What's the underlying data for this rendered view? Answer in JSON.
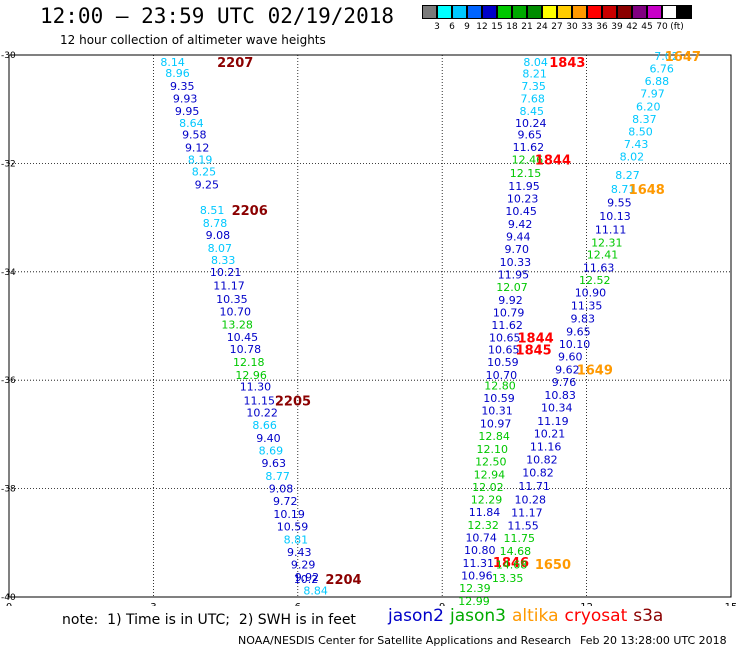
{
  "header": {
    "title": "12:00 – 23:59 UTC 02/19/2018",
    "subtitle": "12 hour collection of altimeter wave heights"
  },
  "colorbar": {
    "colors": [
      "#7a7a7a",
      "#00ffff",
      "#00c8ff",
      "#0064ff",
      "#0000c8",
      "#00c800",
      "#00aa00",
      "#008c00",
      "#ffff00",
      "#ffcc00",
      "#ff9900",
      "#ff0000",
      "#c80000",
      "#8b0000",
      "#800080",
      "#c800c8",
      "#ffffff",
      "#000000"
    ],
    "labels": [
      "3",
      "6",
      "9",
      "12",
      "15",
      "18",
      "21",
      "24",
      "27",
      "30",
      "33",
      "36",
      "39",
      "42",
      "45",
      "70",
      "(ft)"
    ]
  },
  "footer": {
    "note": "note:  1) Time is in UTC;  2) SWH is in feet",
    "credit": "NOAA/NESDIS Center for Satellite Applications and Research",
    "stamp": "Feb 20 13:28:00 UTC 2018"
  },
  "legend": [
    {
      "name": "jason2",
      "color": "#0000c8"
    },
    {
      "name": "jason3",
      "color": "#00aa00"
    },
    {
      "name": "altika",
      "color": "#ff9900"
    },
    {
      "name": "cryosat",
      "color": "#ff0000"
    },
    {
      "name": "s3a",
      "color": "#8b0000"
    }
  ],
  "chart_data": {
    "type": "scatter",
    "xlim": [
      0,
      15
    ],
    "ylim": [
      -40,
      -30
    ],
    "xticks": [
      "0",
      "3",
      "6",
      "9",
      "12",
      "15"
    ],
    "yticks": [
      "-30",
      "-32",
      "-34",
      "-36",
      "-38",
      "-40"
    ],
    "grid": true,
    "tracks": [
      {
        "points": [
          {
            "x": 3.4,
            "y": -30.13,
            "t": "8.14",
            "c": "#00c8ff"
          },
          {
            "x": 3.5,
            "y": -30.33,
            "t": "8.96",
            "c": "#00c8ff"
          },
          {
            "x": 3.6,
            "y": -30.57,
            "t": "9.35",
            "c": "#0000c8"
          },
          {
            "x": 3.66,
            "y": -30.8,
            "t": "9.93",
            "c": "#0000c8"
          },
          {
            "x": 3.7,
            "y": -31.03,
            "t": "9.95",
            "c": "#0000c8"
          },
          {
            "x": 3.79,
            "y": -31.25,
            "t": "8.64",
            "c": "#00c8ff"
          },
          {
            "x": 3.85,
            "y": -31.47,
            "t": "9.58",
            "c": "#0000c8"
          },
          {
            "x": 3.91,
            "y": -31.71,
            "t": "9.12",
            "c": "#0000c8"
          },
          {
            "x": 3.97,
            "y": -31.93,
            "t": "8.19",
            "c": "#00c8ff"
          },
          {
            "x": 4.05,
            "y": -32.15,
            "t": "8.25",
            "c": "#00c8ff"
          },
          {
            "x": 4.11,
            "y": -32.39,
            "t": "9.25",
            "c": "#0000c8"
          },
          {
            "x": 4.22,
            "y": -32.86,
            "t": "8.51",
            "c": "#00c8ff"
          },
          {
            "x": 4.28,
            "y": -33.1,
            "t": "8.78",
            "c": "#00c8ff"
          },
          {
            "x": 4.34,
            "y": -33.32,
            "t": "9.08",
            "c": "#0000c8"
          },
          {
            "x": 4.38,
            "y": -33.56,
            "t": "8.07",
            "c": "#00c8ff"
          },
          {
            "x": 4.45,
            "y": -33.78,
            "t": "8.33",
            "c": "#00c8ff"
          },
          {
            "x": 4.5,
            "y": -34.0,
            "t": "10.21",
            "c": "#0000c8"
          },
          {
            "x": 4.57,
            "y": -34.25,
            "t": "11.17",
            "c": "#0000c8"
          },
          {
            "x": 4.63,
            "y": -34.5,
            "t": "10.35",
            "c": "#0000c8"
          },
          {
            "x": 4.7,
            "y": -34.73,
            "t": "10.70",
            "c": "#0000c8"
          },
          {
            "x": 4.74,
            "y": -34.97,
            "t": "13.28",
            "c": "#00c800"
          },
          {
            "x": 4.85,
            "y": -35.2,
            "t": "10.45",
            "c": "#0000c8"
          },
          {
            "x": 4.91,
            "y": -35.42,
            "t": "10.78",
            "c": "#0000c8"
          },
          {
            "x": 4.98,
            "y": -35.66,
            "t": "12.18",
            "c": "#00c800"
          },
          {
            "x": 5.03,
            "y": -35.9,
            "t": "12.96",
            "c": "#00c800"
          },
          {
            "x": 5.12,
            "y": -36.12,
            "t": "11.30",
            "c": "#0000c8"
          },
          {
            "x": 5.2,
            "y": -36.37,
            "t": "11.15",
            "c": "#0000c8"
          },
          {
            "x": 5.26,
            "y": -36.6,
            "t": "10.22",
            "c": "#0000c8"
          },
          {
            "x": 5.31,
            "y": -36.83,
            "t": "8.66",
            "c": "#00c8ff"
          },
          {
            "x": 5.39,
            "y": -37.07,
            "t": "9.40",
            "c": "#0000c8"
          },
          {
            "x": 5.44,
            "y": -37.3,
            "t": "8.69",
            "c": "#00c8ff"
          },
          {
            "x": 5.5,
            "y": -37.53,
            "t": "9.63",
            "c": "#0000c8"
          },
          {
            "x": 5.58,
            "y": -37.77,
            "t": "8.77",
            "c": "#00c8ff"
          },
          {
            "x": 5.65,
            "y": -38.0,
            "t": "9.08",
            "c": "#0000c8"
          },
          {
            "x": 5.74,
            "y": -38.23,
            "t": "9.72",
            "c": "#0000c8"
          },
          {
            "x": 5.82,
            "y": -38.47,
            "t": "10.19",
            "c": "#0000c8"
          },
          {
            "x": 5.89,
            "y": -38.7,
            "t": "10.59",
            "c": "#0000c8"
          },
          {
            "x": 5.96,
            "y": -38.94,
            "t": "8.81",
            "c": "#00c8ff"
          },
          {
            "x": 6.03,
            "y": -39.17,
            "t": "9.43",
            "c": "#0000c8"
          },
          {
            "x": 6.11,
            "y": -39.4,
            "t": "9.29",
            "c": "#0000c8"
          },
          {
            "x": 6.19,
            "y": -39.63,
            "t": "9.92",
            "c": "#0000c8"
          },
          {
            "x": 6.17,
            "y": -39.67,
            "t": "10.2",
            "c": "#0000c8"
          },
          {
            "x": 6.37,
            "y": -39.88,
            "t": "8.84",
            "c": "#00c8ff"
          }
        ],
        "labels": [
          {
            "x": 4.7,
            "y": -30.13,
            "t": "2207",
            "c": "#8b0000"
          },
          {
            "x": 5.0,
            "y": -32.86,
            "t": "2206",
            "c": "#8b0000"
          },
          {
            "x": 5.9,
            "y": -36.37,
            "t": "2205",
            "c": "#8b0000"
          },
          {
            "x": 6.95,
            "y": -39.67,
            "t": "2204",
            "c": "#8b0000"
          }
        ]
      },
      {
        "points": [
          {
            "x": 10.94,
            "y": -30.13,
            "t": "8.04",
            "c": "#00c8ff"
          },
          {
            "x": 10.92,
            "y": -30.34,
            "t": "8.21",
            "c": "#00c8ff"
          },
          {
            "x": 10.9,
            "y": -30.57,
            "t": "7.35",
            "c": "#00c8ff"
          },
          {
            "x": 10.88,
            "y": -30.8,
            "t": "7.68",
            "c": "#00c8ff"
          },
          {
            "x": 10.86,
            "y": -31.03,
            "t": "8.45",
            "c": "#00c8ff"
          },
          {
            "x": 10.84,
            "y": -31.25,
            "t": "10.24",
            "c": "#0000c8"
          },
          {
            "x": 10.82,
            "y": -31.47,
            "t": "9.65",
            "c": "#0000c8"
          },
          {
            "x": 10.79,
            "y": -31.7,
            "t": "11.62",
            "c": "#0000c8"
          },
          {
            "x": 10.77,
            "y": -31.93,
            "t": "12.46",
            "c": "#00c800"
          },
          {
            "x": 10.73,
            "y": -32.18,
            "t": "12.15",
            "c": "#00c800"
          },
          {
            "x": 10.7,
            "y": -32.42,
            "t": "11.95",
            "c": "#0000c8"
          },
          {
            "x": 10.67,
            "y": -32.65,
            "t": "10.23",
            "c": "#0000c8"
          },
          {
            "x": 10.64,
            "y": -32.88,
            "t": "10.45",
            "c": "#0000c8"
          },
          {
            "x": 10.62,
            "y": -33.12,
            "t": "9.42",
            "c": "#0000c8"
          },
          {
            "x": 10.58,
            "y": -33.35,
            "t": "9.44",
            "c": "#0000c8"
          },
          {
            "x": 10.55,
            "y": -33.58,
            "t": "9.70",
            "c": "#0000c8"
          },
          {
            "x": 10.52,
            "y": -33.82,
            "t": "10.33",
            "c": "#0000c8"
          },
          {
            "x": 10.48,
            "y": -34.05,
            "t": "11.95",
            "c": "#0000c8"
          },
          {
            "x": 10.45,
            "y": -34.28,
            "t": "12.07",
            "c": "#00c800"
          },
          {
            "x": 10.42,
            "y": -34.52,
            "t": "9.92",
            "c": "#0000c8"
          },
          {
            "x": 10.38,
            "y": -34.75,
            "t": "10.79",
            "c": "#0000c8"
          },
          {
            "x": 10.35,
            "y": -34.98,
            "t": "11.62",
            "c": "#0000c8"
          },
          {
            "x": 10.3,
            "y": -35.21,
            "t": "10.65",
            "c": "#0000c8"
          },
          {
            "x": 10.28,
            "y": -35.43,
            "t": "10.65",
            "c": "#0000c8"
          },
          {
            "x": 10.26,
            "y": -35.66,
            "t": "10.59",
            "c": "#0000c8"
          },
          {
            "x": 10.23,
            "y": -35.9,
            "t": "10.70",
            "c": "#0000c8"
          },
          {
            "x": 10.2,
            "y": -36.1,
            "t": "12.80",
            "c": "#00c800"
          },
          {
            "x": 10.18,
            "y": -36.33,
            "t": "10.59",
            "c": "#0000c8"
          },
          {
            "x": 10.14,
            "y": -36.56,
            "t": "10.31",
            "c": "#0000c8"
          },
          {
            "x": 10.11,
            "y": -36.8,
            "t": "10.97",
            "c": "#0000c8"
          },
          {
            "x": 10.08,
            "y": -37.03,
            "t": "12.84",
            "c": "#00c800"
          },
          {
            "x": 10.04,
            "y": -37.27,
            "t": "12.10",
            "c": "#00c800"
          },
          {
            "x": 10.01,
            "y": -37.5,
            "t": "12.50",
            "c": "#00c800"
          },
          {
            "x": 9.98,
            "y": -37.74,
            "t": "12.94",
            "c": "#00c800"
          },
          {
            "x": 9.95,
            "y": -37.97,
            "t": "12.02",
            "c": "#00c800"
          },
          {
            "x": 9.92,
            "y": -38.2,
            "t": "12.29",
            "c": "#00c800"
          },
          {
            "x": 9.88,
            "y": -38.43,
            "t": "11.84",
            "c": "#0000c8"
          },
          {
            "x": 9.85,
            "y": -38.67,
            "t": "12.32",
            "c": "#00c800"
          },
          {
            "x": 9.81,
            "y": -38.9,
            "t": "10.74",
            "c": "#0000c8"
          },
          {
            "x": 9.78,
            "y": -39.13,
            "t": "10.80",
            "c": "#0000c8"
          },
          {
            "x": 9.75,
            "y": -39.37,
            "t": "11.31",
            "c": "#0000c8"
          },
          {
            "x": 9.72,
            "y": -39.6,
            "t": "10.96",
            "c": "#0000c8"
          },
          {
            "x": 9.68,
            "y": -39.83,
            "t": "12.39",
            "c": "#00c800"
          },
          {
            "x": 9.66,
            "y": -40.07,
            "t": "12.99",
            "c": "#00c800"
          }
        ],
        "labels": [
          {
            "x": 11.6,
            "y": -30.13,
            "t": "1843",
            "c": "#ff0000"
          },
          {
            "x": 11.3,
            "y": -31.93,
            "t": "1844",
            "c": "#ff0000"
          },
          {
            "x": 10.94,
            "y": -35.21,
            "t": "1844",
            "c": "#ff0000"
          },
          {
            "x": 10.9,
            "y": -35.43,
            "t": "1845",
            "c": "#ff0000"
          },
          {
            "x": 10.43,
            "y": -39.35,
            "t": "1846",
            "c": "#ff0000"
          }
        ]
      },
      {
        "points": [
          {
            "x": 13.66,
            "y": -30.02,
            "t": "7.02",
            "c": "#00c8ff"
          },
          {
            "x": 13.56,
            "y": -30.25,
            "t": "6.76",
            "c": "#00c8ff"
          },
          {
            "x": 13.46,
            "y": -30.48,
            "t": "6.88",
            "c": "#00c8ff"
          },
          {
            "x": 13.37,
            "y": -30.71,
            "t": "7.97",
            "c": "#00c8ff"
          },
          {
            "x": 13.28,
            "y": -30.95,
            "t": "6.20",
            "c": "#00c8ff"
          },
          {
            "x": 13.2,
            "y": -31.18,
            "t": "8.37",
            "c": "#00c8ff"
          },
          {
            "x": 13.12,
            "y": -31.41,
            "t": "8.50",
            "c": "#00c8ff"
          },
          {
            "x": 13.03,
            "y": -31.64,
            "t": "7.43",
            "c": "#00c8ff"
          },
          {
            "x": 12.94,
            "y": -31.87,
            "t": "8.02",
            "c": "#00c8ff"
          },
          {
            "x": 12.85,
            "y": -32.21,
            "t": "8.27",
            "c": "#00c8ff"
          },
          {
            "x": 12.76,
            "y": -32.47,
            "t": "8.71",
            "c": "#00c8ff"
          },
          {
            "x": 12.68,
            "y": -32.72,
            "t": "9.55",
            "c": "#0000c8"
          },
          {
            "x": 12.59,
            "y": -32.97,
            "t": "10.13",
            "c": "#0000c8"
          },
          {
            "x": 12.5,
            "y": -33.22,
            "t": "11.11",
            "c": "#0000c8"
          },
          {
            "x": 12.42,
            "y": -33.46,
            "t": "12.31",
            "c": "#00c800"
          },
          {
            "x": 12.33,
            "y": -33.68,
            "t": "12.41",
            "c": "#00c800"
          },
          {
            "x": 12.25,
            "y": -33.92,
            "t": "11.63",
            "c": "#0000c8"
          },
          {
            "x": 12.17,
            "y": -34.15,
            "t": "12.52",
            "c": "#00c800"
          },
          {
            "x": 12.08,
            "y": -34.38,
            "t": "10.90",
            "c": "#0000c8"
          },
          {
            "x": 12.0,
            "y": -34.62,
            "t": "11.35",
            "c": "#0000c8"
          },
          {
            "x": 11.92,
            "y": -34.86,
            "t": "9.83",
            "c": "#0000c8"
          },
          {
            "x": 11.83,
            "y": -35.1,
            "t": "9.65",
            "c": "#0000c8"
          },
          {
            "x": 11.75,
            "y": -35.33,
            "t": "10.10",
            "c": "#0000c8"
          },
          {
            "x": 11.66,
            "y": -35.56,
            "t": "9.60",
            "c": "#0000c8"
          },
          {
            "x": 11.6,
            "y": -35.8,
            "t": "9.62",
            "c": "#0000c8"
          },
          {
            "x": 11.53,
            "y": -36.03,
            "t": "9.76",
            "c": "#0000c8"
          },
          {
            "x": 11.45,
            "y": -36.27,
            "t": "10.83",
            "c": "#0000c8"
          },
          {
            "x": 11.38,
            "y": -36.5,
            "t": "10.34",
            "c": "#0000c8"
          },
          {
            "x": 11.3,
            "y": -36.75,
            "t": "11.19",
            "c": "#0000c8"
          },
          {
            "x": 11.23,
            "y": -36.98,
            "t": "10.21",
            "c": "#0000c8"
          },
          {
            "x": 11.15,
            "y": -37.22,
            "t": "11.16",
            "c": "#0000c8"
          },
          {
            "x": 11.07,
            "y": -37.46,
            "t": "10.82",
            "c": "#0000c8"
          },
          {
            "x": 10.99,
            "y": -37.7,
            "t": "10.82",
            "c": "#0000c8"
          },
          {
            "x": 10.91,
            "y": -37.95,
            "t": "11.71",
            "c": "#0000c8"
          },
          {
            "x": 10.83,
            "y": -38.2,
            "t": "10.28",
            "c": "#0000c8"
          },
          {
            "x": 10.76,
            "y": -38.44,
            "t": "11.17",
            "c": "#0000c8"
          },
          {
            "x": 10.68,
            "y": -38.68,
            "t": "11.55",
            "c": "#0000c8"
          },
          {
            "x": 10.6,
            "y": -38.91,
            "t": "11.75",
            "c": "#00c800"
          },
          {
            "x": 10.52,
            "y": -39.15,
            "t": "14.68",
            "c": "#00c800"
          },
          {
            "x": 10.44,
            "y": -39.4,
            "t": "14.68",
            "c": "#00c800"
          },
          {
            "x": 10.36,
            "y": -39.65,
            "t": "13.35",
            "c": "#00c800"
          }
        ],
        "labels": [
          {
            "x": 14.0,
            "y": -30.02,
            "t": "1647",
            "c": "#ff9900"
          },
          {
            "x": 13.25,
            "y": -32.47,
            "t": "1648",
            "c": "#ff9900"
          },
          {
            "x": 12.17,
            "y": -35.8,
            "t": "1649",
            "c": "#ff9900"
          },
          {
            "x": 11.3,
            "y": -39.39,
            "t": "1650",
            "c": "#ff9900"
          }
        ]
      }
    ]
  }
}
